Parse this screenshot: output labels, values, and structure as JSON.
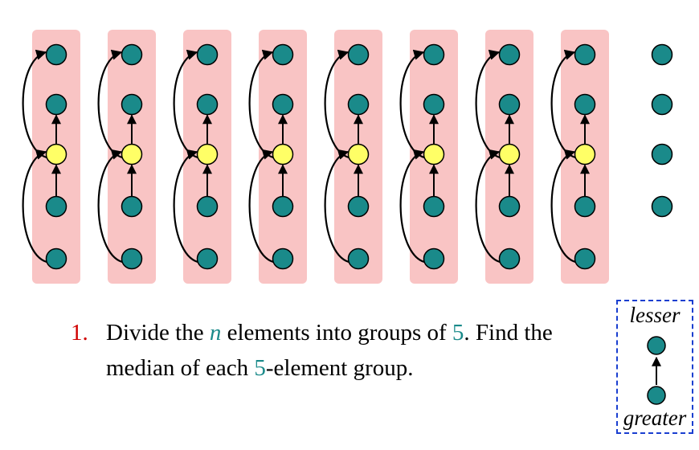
{
  "colors": {
    "group_fill": "#f9c4c4",
    "element_node": "#1a8a8a",
    "median_node": "#ffff66",
    "arrow": "#000000",
    "step_number": "#d00000",
    "highlight": "#1a8a8a",
    "legend_border": "#1a3fd0"
  },
  "diagram": {
    "groups": 8,
    "nodes_per_group": 5,
    "leftover_nodes": 4
  },
  "step": {
    "number": "1.",
    "part1": "Divide the ",
    "var_n": "n",
    "part2": " elements into groups of ",
    "num5a": "5",
    "part3": ". Find the median of each ",
    "num5b": "5",
    "part4": "-element group."
  },
  "legend": {
    "lesser": "lesser",
    "greater": "greater"
  }
}
